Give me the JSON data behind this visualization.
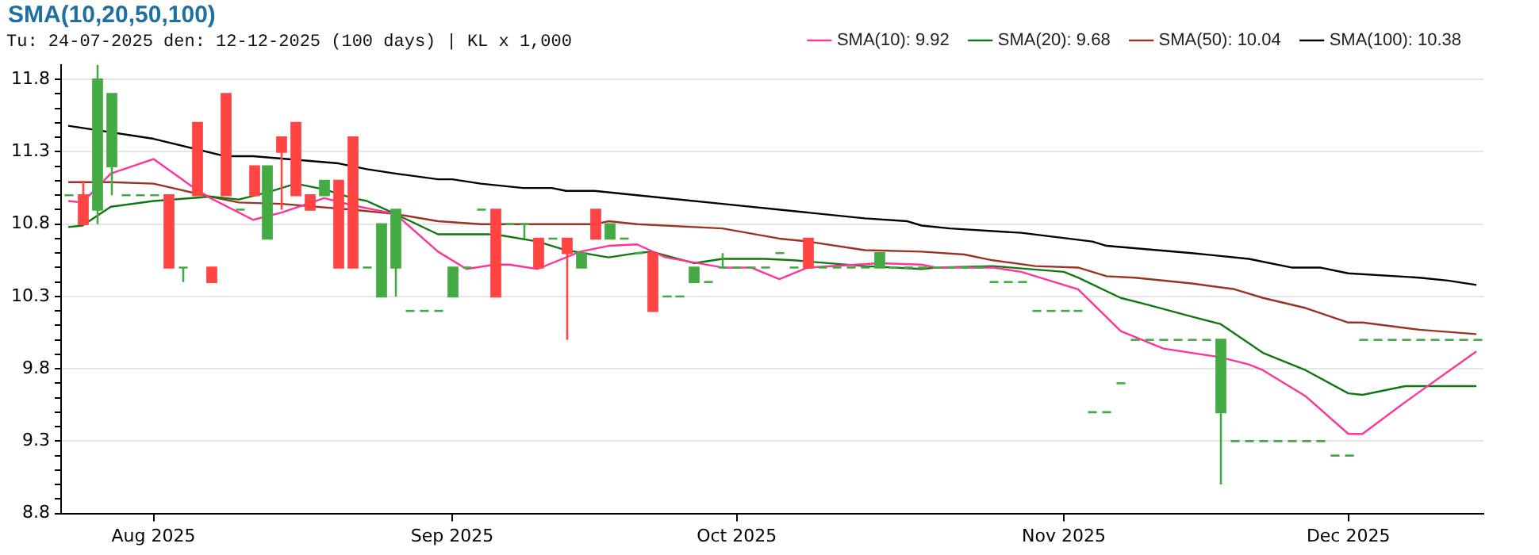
{
  "chart_data": {
    "type": "candlestick",
    "title": "SMA(10,20,50,100)",
    "subtitle": "Tu: 24-07-2025 den: 12-12-2025 (100 days) | KL x 1,000",
    "categories": [
      null,
      null,
      null,
      null,
      null,
      null,
      "Aug 2025",
      null,
      null,
      null,
      null,
      null,
      null,
      null,
      null,
      null,
      null,
      null,
      null,
      null,
      null,
      null,
      null,
      null,
      null,
      null,
      null,
      "Sep 2025",
      null,
      null,
      null,
      null,
      null,
      null,
      null,
      null,
      null,
      null,
      null,
      null,
      null,
      null,
      null,
      null,
      null,
      null,
      null,
      "Oct 2025",
      null,
      null,
      null,
      null,
      null,
      null,
      null,
      null,
      null,
      null,
      null,
      null,
      null,
      null,
      null,
      null,
      null,
      null,
      null,
      null,
      null,
      null,
      "Nov 2025",
      null,
      null,
      null,
      null,
      null,
      null,
      null,
      null,
      null,
      null,
      null,
      null,
      null,
      null,
      null,
      null,
      null,
      null,
      null,
      "Dec 2025",
      null,
      null,
      null,
      null,
      null,
      null,
      null,
      null,
      null
    ],
    "ohlc": [
      [
        11.0,
        11.0,
        11.0,
        11.0
      ],
      [
        11.0,
        11.1,
        10.8,
        10.8
      ],
      [
        10.9,
        11.9,
        10.8,
        11.8
      ],
      [
        11.2,
        11.7,
        11.0,
        11.7
      ],
      [
        11.0,
        11.0,
        11.0,
        11.0
      ],
      [
        11.0,
        11.0,
        11.0,
        11.0
      ],
      [
        11.0,
        11.0,
        11.0,
        11.0
      ],
      [
        11.0,
        11.0,
        10.5,
        10.5
      ],
      [
        10.5,
        10.5,
        10.4,
        10.5
      ],
      [
        11.5,
        11.5,
        11.0,
        11.0
      ],
      [
        10.5,
        10.5,
        10.4,
        10.4
      ],
      [
        11.7,
        11.7,
        11.0,
        11.0
      ],
      [
        10.9,
        10.9,
        10.9,
        10.9
      ],
      [
        11.2,
        11.2,
        11.0,
        11.0
      ],
      [
        10.7,
        11.2,
        10.7,
        11.2
      ],
      [
        11.4,
        11.4,
        10.9,
        11.3
      ],
      [
        11.5,
        11.5,
        11.0,
        11.0
      ],
      [
        11.0,
        11.0,
        10.9,
        10.9
      ],
      [
        11.0,
        11.1,
        11.0,
        11.1
      ],
      [
        11.1,
        11.1,
        10.5,
        10.5
      ],
      [
        11.4,
        11.4,
        10.5,
        10.5
      ],
      [
        10.5,
        10.5,
        10.5,
        10.5
      ],
      [
        10.3,
        10.8,
        10.3,
        10.8
      ],
      [
        10.5,
        10.9,
        10.3,
        10.9
      ],
      [
        10.2,
        10.2,
        10.2,
        10.2
      ],
      [
        10.2,
        10.2,
        10.2,
        10.2
      ],
      [
        10.2,
        10.2,
        10.2,
        10.2
      ],
      [
        10.3,
        10.5,
        10.3,
        10.5
      ],
      [
        10.5,
        10.5,
        10.5,
        10.5
      ],
      [
        10.9,
        10.9,
        10.9,
        10.9
      ],
      [
        10.9,
        10.9,
        10.3,
        10.3
      ],
      [
        10.8,
        10.8,
        10.8,
        10.8
      ],
      [
        10.8,
        10.8,
        10.7,
        10.8
      ],
      [
        10.7,
        10.7,
        10.5,
        10.5
      ],
      [
        10.7,
        10.7,
        10.7,
        10.7
      ],
      [
        10.7,
        10.7,
        10.0,
        10.6
      ],
      [
        10.5,
        10.6,
        10.5,
        10.6
      ],
      [
        10.9,
        10.9,
        10.7,
        10.7
      ],
      [
        10.7,
        10.8,
        10.7,
        10.8
      ],
      [
        10.7,
        10.7,
        10.7,
        10.7
      ],
      [
        10.6,
        10.6,
        10.6,
        10.6
      ],
      [
        10.6,
        10.6,
        10.2,
        10.2
      ],
      [
        10.3,
        10.3,
        10.3,
        10.3
      ],
      [
        10.3,
        10.3,
        10.3,
        10.3
      ],
      [
        10.4,
        10.5,
        10.4,
        10.5
      ],
      [
        10.4,
        10.4,
        10.4,
        10.4
      ],
      [
        10.5,
        10.6,
        10.5,
        10.5
      ],
      [
        10.5,
        10.5,
        10.5,
        10.5
      ],
      [
        10.5,
        10.5,
        10.5,
        10.5
      ],
      [
        10.5,
        10.5,
        10.5,
        10.5
      ],
      [
        10.6,
        10.6,
        10.6,
        10.6
      ],
      [
        10.5,
        10.5,
        10.5,
        10.5
      ],
      [
        10.7,
        10.7,
        10.5,
        10.5
      ],
      [
        10.5,
        10.5,
        10.5,
        10.5
      ],
      [
        10.5,
        10.5,
        10.5,
        10.5
      ],
      [
        10.5,
        10.5,
        10.5,
        10.5
      ],
      [
        10.5,
        10.5,
        10.5,
        10.5
      ],
      [
        10.5,
        10.6,
        10.5,
        10.6
      ],
      [
        10.5,
        10.5,
        10.5,
        10.5
      ],
      [
        10.5,
        10.5,
        10.5,
        10.5
      ],
      [
        10.5,
        10.5,
        10.5,
        10.5
      ],
      [
        10.5,
        10.5,
        10.5,
        10.5
      ],
      [
        10.5,
        10.5,
        10.5,
        10.5
      ],
      [
        10.5,
        10.5,
        10.5,
        10.5
      ],
      [
        10.5,
        10.5,
        10.5,
        10.5
      ],
      [
        10.4,
        10.4,
        10.4,
        10.4
      ],
      [
        10.4,
        10.4,
        10.4,
        10.4
      ],
      [
        10.4,
        10.4,
        10.4,
        10.4
      ],
      [
        10.2,
        10.2,
        10.2,
        10.2
      ],
      [
        10.2,
        10.2,
        10.2,
        10.2
      ],
      [
        10.2,
        10.2,
        10.2,
        10.2
      ],
      [
        10.2,
        10.2,
        10.2,
        10.2
      ],
      [
        9.5,
        9.5,
        9.5,
        9.5
      ],
      [
        9.5,
        9.5,
        9.5,
        9.5
      ],
      [
        9.7,
        9.7,
        9.7,
        9.7
      ],
      [
        10.0,
        10.0,
        10.0,
        10.0
      ],
      [
        10.0,
        10.0,
        10.0,
        10.0
      ],
      [
        10.0,
        10.0,
        10.0,
        10.0
      ],
      [
        10.0,
        10.0,
        10.0,
        10.0
      ],
      [
        10.0,
        10.0,
        10.0,
        10.0
      ],
      [
        10.0,
        10.0,
        10.0,
        10.0
      ],
      [
        9.5,
        10.0,
        9.0,
        10.0
      ],
      [
        9.3,
        9.3,
        9.3,
        9.3
      ],
      [
        9.3,
        9.3,
        9.3,
        9.3
      ],
      [
        9.3,
        9.3,
        9.3,
        9.3
      ],
      [
        9.3,
        9.3,
        9.3,
        9.3
      ],
      [
        9.3,
        9.3,
        9.3,
        9.3
      ],
      [
        9.3,
        9.3,
        9.3,
        9.3
      ],
      [
        9.3,
        9.3,
        9.3,
        9.3
      ],
      [
        9.2,
        9.2,
        9.2,
        9.2
      ],
      [
        9.2,
        9.2,
        9.2,
        9.2
      ],
      [
        10.0,
        10.0,
        10.0,
        10.0
      ],
      [
        10.0,
        10.0,
        10.0,
        10.0
      ],
      [
        10.0,
        10.0,
        10.0,
        10.0
      ],
      [
        10.0,
        10.0,
        10.0,
        10.0
      ],
      [
        10.0,
        10.0,
        10.0,
        10.0
      ],
      [
        10.0,
        10.0,
        10.0,
        10.0
      ],
      [
        10.0,
        10.0,
        10.0,
        10.0
      ],
      [
        10.0,
        10.0,
        10.0,
        10.0
      ],
      [
        10.0,
        10.0,
        10.0,
        10.0
      ]
    ],
    "colors": [
      "#44aa44",
      "#ff4444",
      "#44aa44",
      "#44aa44",
      "#44aa44",
      "#44aa44",
      "#44aa44",
      "#ff4444",
      "#44aa44",
      "#ff4444",
      "#ff4444",
      "#ff4444",
      "#44aa44",
      "#ff4444",
      "#44aa44",
      "#ff4444",
      "#ff4444",
      "#ff4444",
      "#44aa44",
      "#ff4444",
      "#ff4444",
      "#44aa44",
      "#44aa44",
      "#44aa44",
      "#44aa44",
      "#44aa44",
      "#44aa44",
      "#44aa44",
      "#44aa44",
      "#44aa44",
      "#ff4444",
      "#44aa44",
      "#44aa44",
      "#ff4444",
      "#44aa44",
      "#ff4444",
      "#44aa44",
      "#ff4444",
      "#44aa44",
      "#44aa44",
      "#44aa44",
      "#ff4444",
      "#44aa44",
      "#44aa44",
      "#44aa44",
      "#44aa44",
      "#44aa44",
      "#44aa44",
      "#44aa44",
      "#44aa44",
      "#44aa44",
      "#44aa44",
      "#ff4444",
      "#44aa44",
      "#44aa44",
      "#44aa44",
      "#44aa44",
      "#44aa44",
      "#44aa44",
      "#44aa44",
      "#44aa44",
      "#44aa44",
      "#44aa44",
      "#44aa44",
      "#44aa44",
      "#44aa44",
      "#44aa44",
      "#44aa44",
      "#44aa44",
      "#44aa44",
      "#44aa44",
      "#44aa44",
      "#44aa44",
      "#44aa44",
      "#44aa44",
      "#44aa44",
      "#44aa44",
      "#44aa44",
      "#44aa44",
      "#44aa44",
      "#44aa44",
      "#44aa44",
      "#44aa44",
      "#44aa44",
      "#44aa44",
      "#44aa44",
      "#44aa44",
      "#44aa44",
      "#44aa44",
      "#44aa44",
      "#44aa44",
      "#44aa44",
      "#44aa44",
      "#44aa44",
      "#44aa44",
      "#44aa44",
      "#44aa44",
      "#44aa44",
      "#44aa44",
      "#44aa44"
    ],
    "series": [
      {
        "name": "SMA(10): 9.92",
        "type": "line",
        "color": "#ff3399",
        "values": [
          10.96,
          10.95,
          null,
          11.15,
          null,
          null,
          11.25,
          null,
          null,
          11.04,
          10.98,
          null,
          null,
          10.83,
          null,
          10.88,
          null,
          null,
          10.98,
          null,
          10.93,
          null,
          null,
          10.87,
          null,
          null,
          10.61,
          null,
          10.49,
          null,
          10.52,
          10.52,
          null,
          10.49,
          null,
          null,
          10.61,
          null,
          10.65,
          null,
          10.66,
          null,
          10.57,
          null,
          null,
          null,
          10.5,
          null,
          10.5,
          null,
          10.42,
          null,
          10.5,
          null,
          null,
          null,
          null,
          10.53,
          null,
          null,
          10.52,
          10.5,
          null,
          null,
          null,
          10.5,
          null,
          10.47,
          null,
          null,
          10.38,
          10.35,
          null,
          null,
          10.06,
          null,
          null,
          9.94,
          null,
          9.91,
          null,
          9.88,
          null,
          9.83,
          9.79,
          null,
          null,
          9.61,
          null,
          null,
          9.35,
          9.35,
          null,
          null,
          9.57,
          null,
          null,
          null,
          null,
          9.92
        ]
      },
      {
        "name": "SMA(20): 9.68",
        "type": "line",
        "color": "#117711",
        "values": [
          10.78,
          10.79,
          null,
          10.92,
          null,
          null,
          10.96,
          null,
          null,
          null,
          10.99,
          null,
          10.97,
          null,
          11.02,
          null,
          11.08,
          null,
          11.04,
          null,
          10.98,
          10.96,
          null,
          10.87,
          null,
          null,
          10.73,
          null,
          null,
          null,
          10.73,
          null,
          null,
          10.68,
          null,
          10.62,
          null,
          null,
          10.57,
          null,
          10.6,
          10.61,
          null,
          null,
          10.53,
          null,
          10.56,
          null,
          null,
          10.56,
          null,
          10.55,
          null,
          null,
          null,
          null,
          10.51,
          null,
          null,
          null,
          10.49,
          10.5,
          null,
          null,
          null,
          10.51,
          null,
          null,
          null,
          null,
          10.47,
          10.43,
          null,
          null,
          10.29,
          null,
          10.24,
          null,
          null,
          10.16,
          null,
          10.11,
          null,
          null,
          9.91,
          null,
          null,
          9.79,
          null,
          null,
          9.63,
          9.62,
          null,
          null,
          9.68,
          null,
          null,
          null,
          null,
          9.68
        ]
      },
      {
        "name": "SMA(50): 10.04",
        "type": "line",
        "color": "#993322",
        "values": [
          11.09,
          null,
          null,
          11.09,
          null,
          null,
          11.08,
          null,
          null,
          null,
          10.99,
          null,
          10.95,
          null,
          null,
          10.94,
          null,
          null,
          null,
          null,
          10.9,
          null,
          null,
          10.87,
          null,
          null,
          10.82,
          null,
          null,
          10.8,
          null,
          null,
          null,
          null,
          null,
          null,
          null,
          10.8,
          10.82,
          null,
          10.8,
          null,
          null,
          null,
          null,
          null,
          10.77,
          null,
          null,
          null,
          10.7,
          null,
          10.68,
          null,
          null,
          null,
          10.62,
          null,
          null,
          null,
          10.61,
          null,
          null,
          10.59,
          null,
          10.55,
          null,
          null,
          10.51,
          null,
          null,
          10.5,
          null,
          10.44,
          null,
          10.43,
          null,
          null,
          null,
          10.39,
          null,
          null,
          10.35,
          null,
          10.29,
          null,
          null,
          10.22,
          null,
          null,
          10.12,
          10.12,
          null,
          null,
          null,
          10.07,
          null,
          null,
          null,
          10.04
        ]
      },
      {
        "name": "SMA(100): 10.38",
        "type": "line",
        "color": "#000000",
        "values": [
          11.48,
          null,
          null,
          null,
          null,
          null,
          11.39,
          null,
          null,
          null,
          null,
          11.27,
          null,
          11.27,
          null,
          null,
          null,
          null,
          null,
          11.22,
          null,
          11.18,
          null,
          11.15,
          null,
          null,
          11.11,
          11.11,
          null,
          11.08,
          null,
          null,
          11.05,
          null,
          11.05,
          11.03,
          null,
          11.03,
          null,
          null,
          11.0,
          null,
          null,
          null,
          null,
          null,
          10.94,
          null,
          null,
          null,
          null,
          10.89,
          null,
          null,
          null,
          null,
          10.84,
          null,
          null,
          10.82,
          10.79,
          null,
          10.77,
          null,
          null,
          null,
          null,
          10.74,
          null,
          null,
          null,
          null,
          10.68,
          10.65,
          null,
          null,
          null,
          null,
          null,
          10.6,
          null,
          null,
          null,
          10.56,
          null,
          null,
          10.5,
          null,
          10.5,
          null,
          10.46,
          null,
          null,
          null,
          null,
          10.43,
          null,
          10.41,
          null,
          10.38
        ]
      }
    ],
    "ylim": [
      8.8,
      11.9
    ],
    "yticks": [
      8.8,
      {
        "value": 8.9,
        "label": null
      },
      {
        "value": 9.0,
        "label": null
      },
      {
        "value": 9.1,
        "label": null
      },
      {
        "value": 9.2,
        "label": null
      },
      9.3,
      {
        "value": 9.4,
        "label": null
      },
      {
        "value": 9.5,
        "label": null
      },
      {
        "value": 9.6,
        "label": null
      },
      {
        "value": 9.7,
        "label": null
      },
      9.8,
      {
        "value": 9.9,
        "label": null
      },
      {
        "value": 10.0,
        "label": null
      },
      {
        "value": 10.1,
        "label": null
      },
      {
        "value": 10.2,
        "label": null
      },
      10.3,
      {
        "value": 10.4,
        "label": null
      },
      {
        "value": 10.5,
        "label": null
      },
      {
        "value": 10.6,
        "label": null
      },
      {
        "value": 10.7,
        "label": null
      },
      10.8,
      {
        "value": 10.9,
        "label": null
      },
      {
        "value": 11.0,
        "label": null
      },
      {
        "value": 11.1,
        "label": null
      },
      {
        "value": 11.2,
        "label": null
      },
      11.3,
      {
        "value": 11.4,
        "label": null
      },
      {
        "value": 11.5,
        "label": null
      },
      {
        "value": 11.6,
        "label": null
      },
      {
        "value": 11.7,
        "label": null
      },
      11.8
    ],
    "grid": "y",
    "legend": "top right",
    "marker": "none",
    "line_style": "solid"
  }
}
